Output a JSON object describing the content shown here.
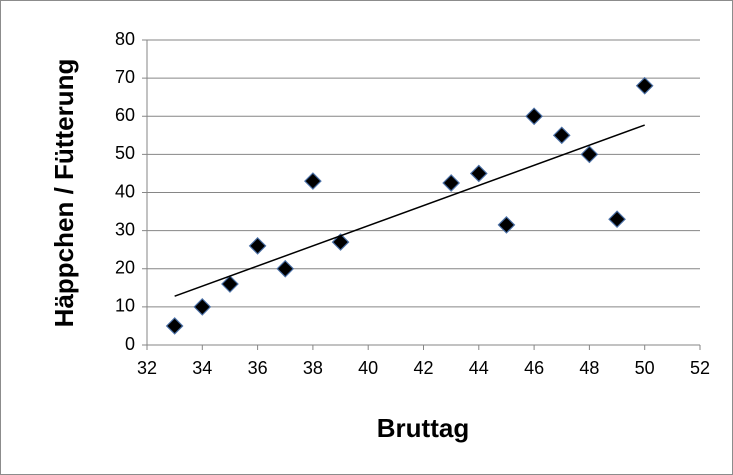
{
  "chart_data": {
    "type": "scatter",
    "x_label": "Bruttag",
    "y_label": "Häppchen / Fütterung",
    "x": [
      33,
      34,
      35,
      36,
      37,
      38,
      39,
      43,
      44,
      45,
      46,
      47,
      48,
      49,
      50
    ],
    "series": [
      {
        "color": "#000000",
        "values": [
          5,
          10,
          16,
          26,
          20,
          43,
          27,
          42.5,
          45,
          31.5,
          60,
          55,
          50,
          33,
          68
        ]
      }
    ],
    "trendline": {
      "x": [
        33,
        50
      ],
      "y": [
        12.8,
        57.7
      ]
    },
    "xlim": [
      32,
      52
    ],
    "xticks": [
      32,
      34,
      36,
      38,
      40,
      42,
      44,
      46,
      48,
      50,
      52
    ],
    "ylim": [
      0,
      80
    ],
    "yticks": [
      0,
      10,
      20,
      30,
      40,
      50,
      60,
      70,
      80
    ],
    "grid": true
  }
}
